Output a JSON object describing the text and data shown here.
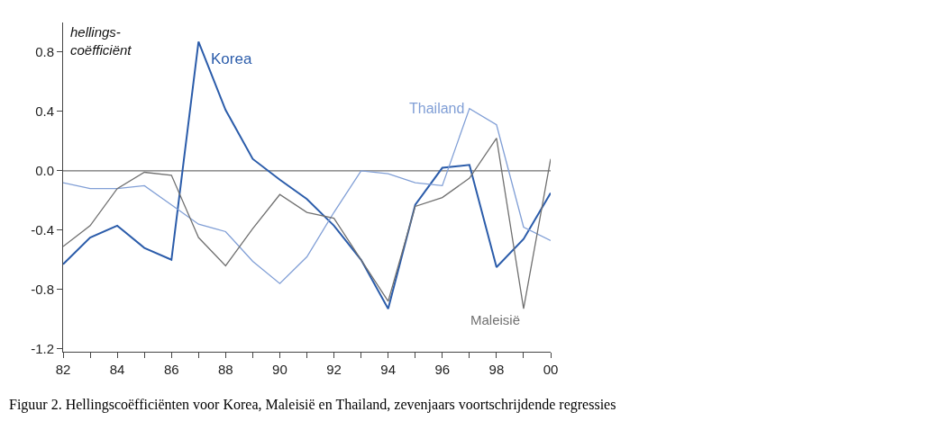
{
  "chart_data": {
    "type": "line",
    "ylabel": "hellings-\ncoëfficiënt",
    "x": [
      "1982",
      "1983",
      "1984",
      "1985",
      "1986",
      "1987",
      "1988",
      "1989",
      "1990",
      "1991",
      "1992",
      "1993",
      "1994",
      "1995",
      "1996",
      "1997",
      "1998",
      "1999",
      "2000"
    ],
    "series": [
      {
        "name": "Korea",
        "color": "#2b5caa",
        "values": [
          -0.63,
          -0.45,
          -0.37,
          -0.52,
          -0.6,
          0.87,
          0.41,
          0.08,
          -0.06,
          -0.19,
          -0.37,
          -0.6,
          -0.93,
          -0.23,
          0.02,
          0.04,
          -0.65,
          -0.46,
          -0.15
        ]
      },
      {
        "name": "Thailand",
        "color": "#819fd6",
        "values": [
          -0.08,
          -0.12,
          -0.12,
          -0.1,
          -0.23,
          -0.36,
          -0.41,
          -0.61,
          -0.76,
          -0.58,
          -0.28,
          0.0,
          -0.02,
          -0.08,
          -0.1,
          0.42,
          0.31,
          -0.38,
          -0.47
        ]
      },
      {
        "name": "Maleisië",
        "color": "#707070",
        "values": [
          -0.51,
          -0.37,
          -0.12,
          -0.01,
          -0.03,
          -0.45,
          -0.64,
          -0.39,
          -0.16,
          -0.28,
          -0.32,
          -0.6,
          -0.88,
          -0.24,
          -0.18,
          -0.05,
          0.22,
          -0.93,
          0.08
        ]
      }
    ],
    "xlim": [
      "1982",
      "2000"
    ],
    "xticks": [
      {
        "value": "1982",
        "label": "82"
      },
      {
        "value": "1983",
        "label": null
      },
      {
        "value": "1984",
        "label": "84"
      },
      {
        "value": "1985",
        "label": null
      },
      {
        "value": "1986",
        "label": "86"
      },
      {
        "value": "1987",
        "label": null
      },
      {
        "value": "1988",
        "label": "88"
      },
      {
        "value": "1989",
        "label": null
      },
      {
        "value": "1990",
        "label": "90"
      },
      {
        "value": "1991",
        "label": null
      },
      {
        "value": "1992",
        "label": "92"
      },
      {
        "value": "1993",
        "label": null
      },
      {
        "value": "1994",
        "label": "94"
      },
      {
        "value": "1995",
        "label": null
      },
      {
        "value": "1996",
        "label": "96"
      },
      {
        "value": "1997",
        "label": null
      },
      {
        "value": "1998",
        "label": "98"
      },
      {
        "value": "1999",
        "label": null
      },
      {
        "value": "2000",
        "label": "00"
      }
    ],
    "ylim": [
      -1.22,
      1.0
    ],
    "yticks": [
      0.8,
      0.4,
      {
        "value": 0,
        "label": "0.0"
      },
      -0.4,
      -0.8,
      -1.2
    ],
    "ref_lines": [
      {
        "axis": "y",
        "value": 0,
        "color": "#707070"
      }
    ],
    "annotations": [
      "Figuur 2. Hellingscoëfficiënten voor Korea, Maleisië en Thailand, zevenjaars voortschrijdende regressies"
    ],
    "grid": false,
    "legend": false,
    "marker": "none",
    "line_style": "solid"
  }
}
